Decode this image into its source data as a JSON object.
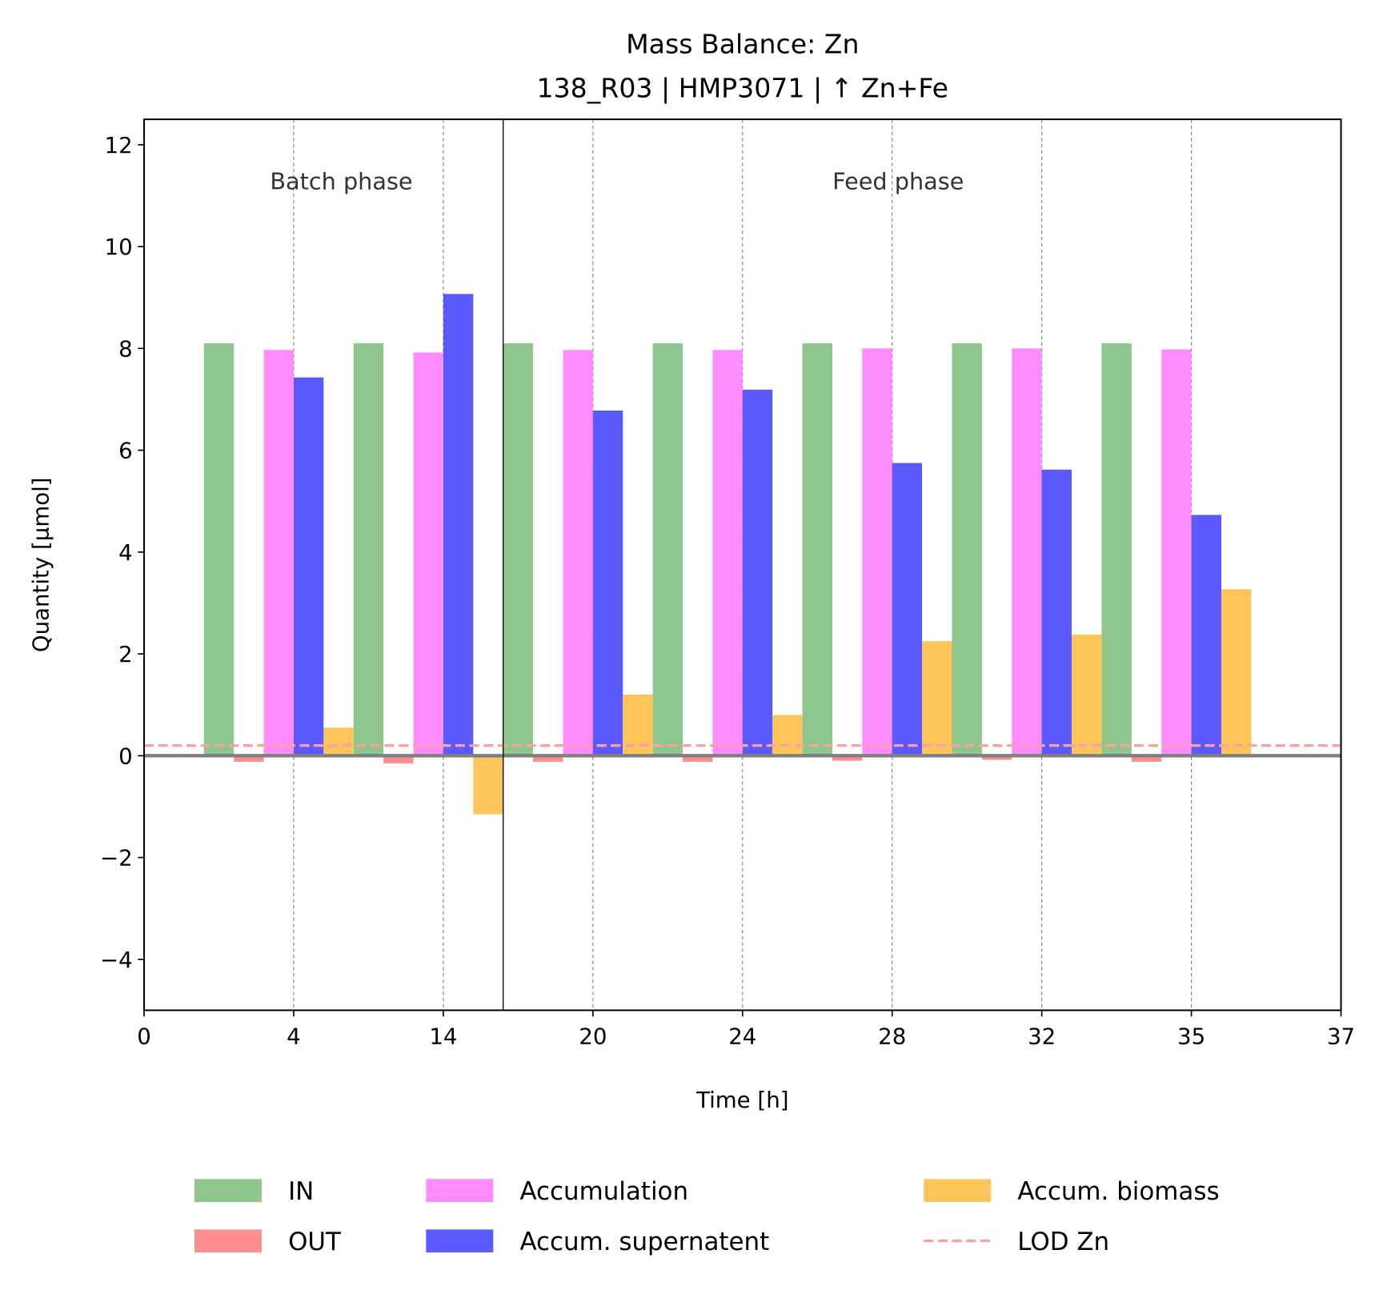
{
  "chart_data": {
    "type": "bar",
    "title": "Mass Balance: Zn",
    "subtitle": "138_R03  |  HMP3071  |  ↑ Zn+Fe",
    "x_label": "Time [h]",
    "y_label": "Quantity [µmol]",
    "annotations": [
      "Batch phase",
      "Feed phase"
    ],
    "phase_boundary": 2.4,
    "x": [
      0.5,
      1.5,
      2.5,
      3.5,
      4.5,
      5.5,
      6.5
    ],
    "xlim": [
      0,
      8
    ],
    "xticks": [
      {
        "value": 0,
        "label": "0"
      },
      {
        "value": 1,
        "label": "4"
      },
      {
        "value": 2,
        "label": "14"
      },
      {
        "value": 3,
        "label": "20"
      },
      {
        "value": 4,
        "label": "24"
      },
      {
        "value": 5,
        "label": "28"
      },
      {
        "value": 6,
        "label": "32"
      },
      {
        "value": 7,
        "label": "35"
      },
      {
        "value": 8,
        "label": "37"
      }
    ],
    "ylim": [
      -5,
      12.5
    ],
    "yticks": [
      {
        "value": -4,
        "label": "−4"
      },
      {
        "value": -2,
        "label": "−2"
      },
      0,
      2,
      4,
      6,
      8,
      10,
      12
    ],
    "series": [
      {
        "name": "IN",
        "color": "#8fc68d",
        "values": [
          8.1,
          8.1,
          8.1,
          8.1,
          8.1,
          8.1,
          8.1
        ]
      },
      {
        "name": "OUT",
        "color": "#ff8f8f",
        "values": [
          -0.12,
          -0.15,
          -0.12,
          -0.12,
          -0.1,
          -0.08,
          -0.12
        ]
      },
      {
        "name": "Accumulation",
        "color": "#ff8cff",
        "values": [
          7.97,
          7.92,
          7.97,
          7.97,
          8.0,
          8.0,
          7.98
        ]
      },
      {
        "name": "Accum. supernatent",
        "color": "#5a5aff",
        "values": [
          7.43,
          9.07,
          6.78,
          7.19,
          5.75,
          5.62,
          4.73
        ]
      },
      {
        "name": "Accum. biomass",
        "color": "#ffc55a",
        "values": [
          0.55,
          -1.15,
          1.2,
          0.8,
          2.25,
          2.38,
          3.27
        ]
      }
    ],
    "lod": {
      "name": "LOD Zn",
      "color": "#ffa0a0",
      "value": 0.2
    },
    "grid": true
  }
}
